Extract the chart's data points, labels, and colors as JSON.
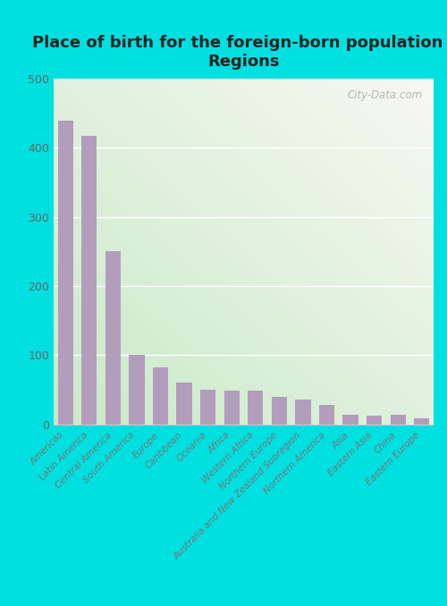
{
  "title": "Place of birth for the foreign-born population -\nRegions",
  "categories": [
    "Americas",
    "Latin America",
    "Central America",
    "South America",
    "Europe",
    "Caribbean",
    "Oceania",
    "Africa",
    "Western Africa",
    "Northern Europe",
    "Australia and New Zealand Subregion",
    "Northern America",
    "Asia",
    "Eastern Asia",
    "China",
    "Eastern Europe"
  ],
  "values": [
    440,
    418,
    251,
    101,
    82,
    60,
    50,
    48,
    48,
    40,
    36,
    28,
    14,
    13,
    14,
    9
  ],
  "bar_color": "#b39dbd",
  "grad_color_bottom_left": "#c8eac8",
  "grad_color_top_right": "#f8f8f2",
  "outer_background": "#00e0e0",
  "ylim": [
    0,
    500
  ],
  "yticks": [
    0,
    100,
    200,
    300,
    400,
    500
  ],
  "title_fontsize": 13,
  "watermark": "City-Data.com"
}
